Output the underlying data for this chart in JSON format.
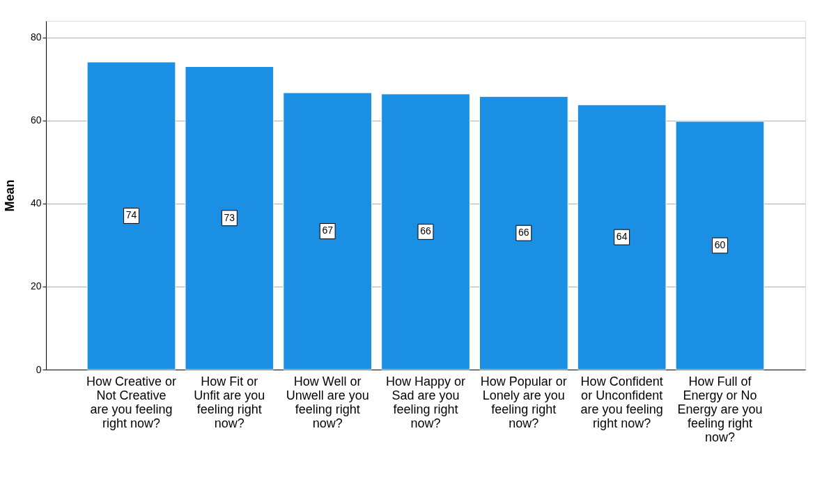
{
  "chart_data": {
    "type": "bar",
    "ylabel": "Mean",
    "categories": [
      "How Creative or Not Creative are you feeling right now?",
      "How Fit or Unfit are you feeling right now?",
      "How Well or Unwell are you feeling right now?",
      "How Happy or Sad are you feeling right now?",
      "How Popular or Lonely are you feeling right now?",
      "How Confident or Unconfident are you feeling right now?",
      "How Full of Energy or No Energy are you feeling right now?"
    ],
    "values": [
      74.1,
      73.0,
      66.7,
      66.4,
      65.8,
      63.8,
      59.8
    ],
    "value_labels": [
      "74",
      "73",
      "67",
      "66",
      "66",
      "64",
      "60"
    ],
    "color": "#1a8fe3",
    "ylim": [
      0,
      84
    ],
    "yticks": [
      0,
      20,
      40,
      60,
      80
    ],
    "grid": "y"
  }
}
